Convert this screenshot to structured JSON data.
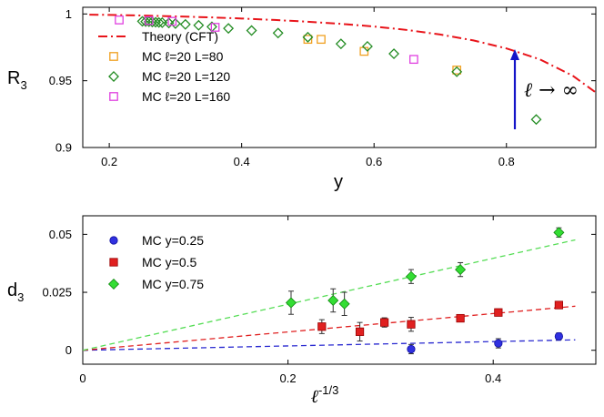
{
  "chart_data": [
    {
      "type": "scatter",
      "title": "",
      "xlabel": "y",
      "ylabel": "R",
      "ylabel_sub": "3",
      "xlim": [
        0.16,
        0.935
      ],
      "ylim": [
        0.9,
        1.005
      ],
      "xticks": [
        0.2,
        0.4,
        0.6,
        0.8
      ],
      "xtick_labels": [
        "0.2",
        "0.4",
        "0.6",
        "0.8"
      ],
      "yticks": [
        0.9,
        0.95,
        1.0
      ],
      "ytick_labels": [
        "0.9",
        "0.95",
        "1"
      ],
      "legend_position": "left",
      "annotation": {
        "text": "ℓ → ∞",
        "arrow": "up",
        "color": "#1414c8"
      },
      "series": [
        {
          "name": "Theory (CFT)",
          "kind": "line",
          "color": "#e8141a",
          "x": [
            0.17,
            0.2,
            0.25,
            0.3,
            0.35,
            0.4,
            0.45,
            0.5,
            0.55,
            0.6,
            0.65,
            0.7,
            0.75,
            0.8,
            0.85,
            0.9,
            0.935
          ],
          "y": [
            0.9995,
            0.9993,
            0.9988,
            0.9982,
            0.9975,
            0.9966,
            0.9955,
            0.9942,
            0.9926,
            0.9906,
            0.988,
            0.9846,
            0.9802,
            0.9742,
            0.9661,
            0.9538,
            0.9412
          ]
        },
        {
          "name": "MC ℓ=20 L=80",
          "kind": "markers",
          "marker": "square-open",
          "color": "#f0a020",
          "x": [
            0.5,
            0.52,
            0.585,
            0.725
          ],
          "y": [
            0.981,
            0.981,
            0.972,
            0.958
          ]
        },
        {
          "name": "MC ℓ=20 L=120",
          "kind": "markers",
          "marker": "diamond-open",
          "color": "#238c23",
          "x": [
            0.25,
            0.255,
            0.26,
            0.265,
            0.27,
            0.275,
            0.28,
            0.29,
            0.3,
            0.315,
            0.335,
            0.355,
            0.38,
            0.415,
            0.455,
            0.5,
            0.55,
            0.59,
            0.63,
            0.725,
            0.845
          ],
          "y": [
            0.9945,
            0.9943,
            0.9942,
            0.994,
            0.9938,
            0.9936,
            0.9935,
            0.9932,
            0.9928,
            0.9922,
            0.9915,
            0.9904,
            0.9892,
            0.9876,
            0.9857,
            0.9826,
            0.9776,
            0.9757,
            0.9702,
            0.9567,
            0.921
          ]
        },
        {
          "name": "MC ℓ=20 L=160",
          "kind": "markers",
          "marker": "square-open",
          "color": "#e040e0",
          "x": [
            0.215,
            0.26,
            0.295,
            0.36,
            0.66
          ],
          "y": [
            0.9955,
            0.995,
            0.9945,
            0.99,
            0.966
          ]
        }
      ]
    },
    {
      "type": "scatter",
      "title": "",
      "xlabel": "ℓ",
      "xlabel_sup": "-1/3",
      "ylabel": "d",
      "ylabel_sub": "3",
      "xlim": [
        0,
        0.5
      ],
      "ylim": [
        -0.006,
        0.058
      ],
      "xticks": [
        0,
        0.2,
        0.4
      ],
      "xtick_labels": [
        "0",
        "0.2",
        "0.4"
      ],
      "yticks": [
        0,
        0.025,
        0.05
      ],
      "ytick_labels": [
        "0",
        "0.025",
        "0.05"
      ],
      "legend_position": "top-left",
      "series": [
        {
          "name": "MC y=0.25",
          "kind": "markers",
          "marker": "circle",
          "color": "#3030e0",
          "x": [
            0.32,
            0.405,
            0.464
          ],
          "y": [
            0.0005,
            0.003,
            0.006
          ],
          "err": [
            0.002,
            0.002,
            0.0015
          ],
          "fit": {
            "color": "#2828d0",
            "x": [
              0,
              0.48
            ],
            "y": [
              0,
              0.0045
            ]
          }
        },
        {
          "name": "MC y=0.5",
          "kind": "markers",
          "marker": "square",
          "color": "#e02020",
          "x": [
            0.233,
            0.27,
            0.294,
            0.32,
            0.368,
            0.405,
            0.464
          ],
          "y": [
            0.0102,
            0.008,
            0.012,
            0.0112,
            0.0138,
            0.0163,
            0.0195
          ],
          "err": [
            0.003,
            0.004,
            0.002,
            0.003,
            0.0015,
            0.0015,
            0.0015
          ],
          "fit": {
            "color": "#e02020",
            "x": [
              0,
              0.48
            ],
            "y": [
              0,
              0.019
            ]
          }
        },
        {
          "name": "MC y=0.75",
          "kind": "markers",
          "marker": "diamond",
          "color": "#33dd33",
          "x": [
            0.203,
            0.244,
            0.255,
            0.32,
            0.368,
            0.464
          ],
          "y": [
            0.0205,
            0.0215,
            0.02,
            0.0318,
            0.0348,
            0.0508
          ],
          "err": [
            0.005,
            0.005,
            0.005,
            0.003,
            0.003,
            0.002
          ],
          "fit": {
            "color": "#55dd55",
            "x": [
              0,
              0.48
            ],
            "y": [
              0,
              0.0476
            ]
          }
        }
      ]
    }
  ]
}
